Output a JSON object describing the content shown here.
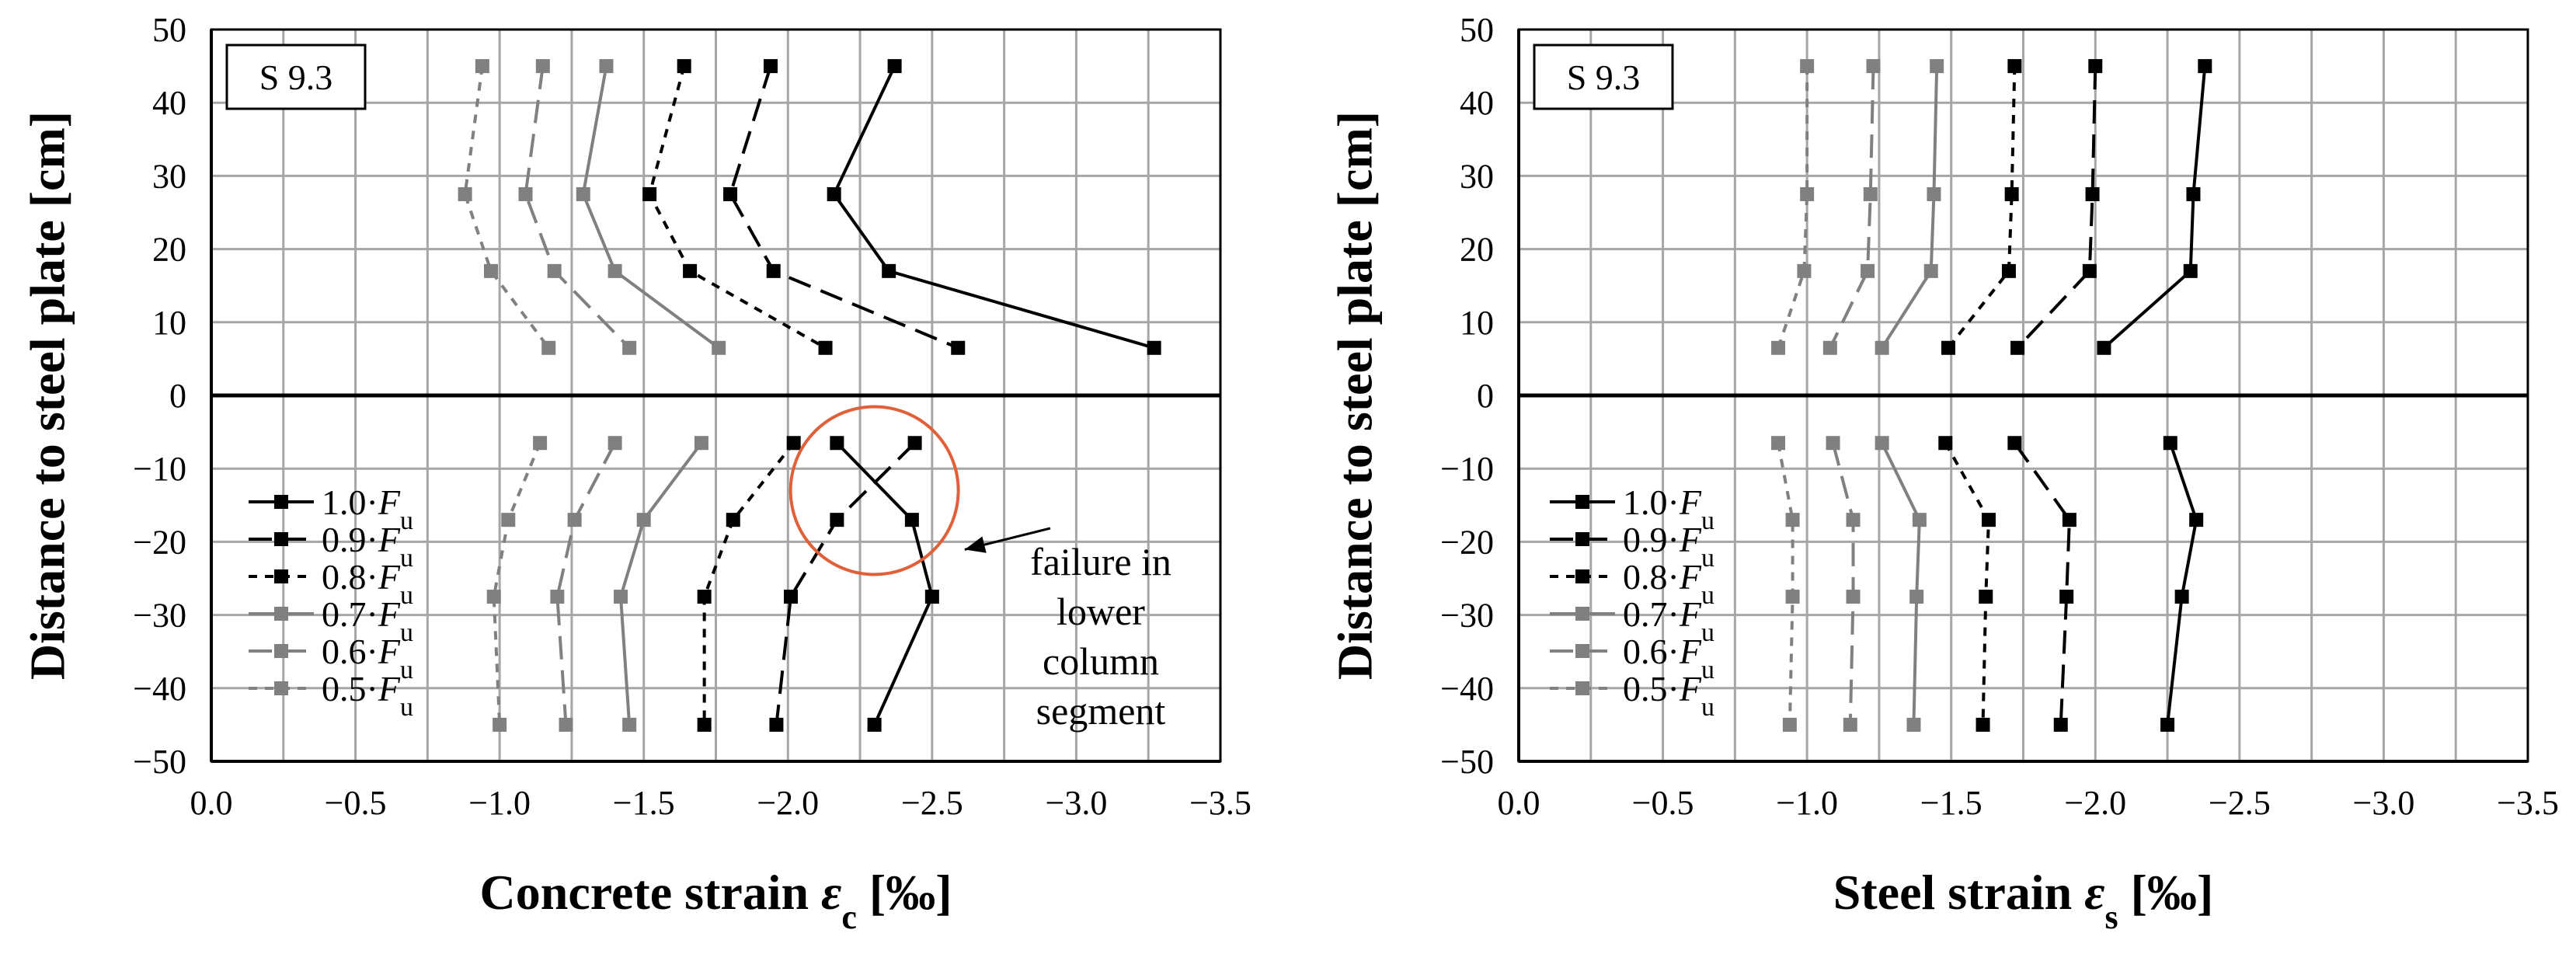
{
  "chart_data": [
    {
      "type": "line",
      "panel_label": "S 9.3",
      "xlabel_main": "Concrete strain ",
      "xlabel_symbol": "ε",
      "xlabel_sub": "c",
      "xlabel_unit": " [‰]",
      "ylabel": "Distance to steel plate [cm]",
      "xlim": [
        0.0,
        -3.5
      ],
      "ylim": [
        -50,
        50
      ],
      "x_ticks": [
        "0.0",
        "−0.5",
        "−1.0",
        "−1.5",
        "−2.0",
        "−2.5",
        "−3.0",
        "−3.5"
      ],
      "y_ticks": [
        "50",
        "40",
        "30",
        "20",
        "10",
        "0",
        "−10",
        "−20",
        "−30",
        "−40",
        "−50"
      ],
      "grid": true,
      "legend_position": "lower-left",
      "annotation": {
        "lines": [
          "failure in",
          "lower",
          "column",
          "segment"
        ],
        "circle_center": [
          -2.3,
          -13
        ],
        "arrow_target": [
          -2.57,
          -20
        ]
      },
      "series": [
        {
          "name_prefix": "1.0·",
          "name_italic": "F",
          "name_sub": "u",
          "color": "#000000",
          "dash": "solid",
          "upper": [
            [
              -2.37,
              45
            ],
            [
              -2.16,
              27.5
            ],
            [
              -2.35,
              17
            ],
            [
              -3.27,
              6.5
            ]
          ],
          "lower": [
            [
              -2.17,
              -6.5
            ],
            [
              -2.43,
              -17
            ],
            [
              -2.5,
              -27.5
            ],
            [
              -2.3,
              -45
            ]
          ]
        },
        {
          "name_prefix": "0.9·",
          "name_italic": "F",
          "name_sub": "u",
          "color": "#000000",
          "dash": "long",
          "upper": [
            [
              -1.94,
              45
            ],
            [
              -1.8,
              27.5
            ],
            [
              -1.95,
              17
            ],
            [
              -2.59,
              6.5
            ]
          ],
          "lower": [
            [
              -2.44,
              -6.5
            ],
            [
              -2.17,
              -17
            ],
            [
              -2.01,
              -27.5
            ],
            [
              -1.96,
              -45
            ]
          ]
        },
        {
          "name_prefix": "0.8·",
          "name_italic": "F",
          "name_sub": "u",
          "color": "#000000",
          "dash": "short",
          "upper": [
            [
              -1.64,
              45
            ],
            [
              -1.52,
              27.5
            ],
            [
              -1.66,
              17
            ],
            [
              -2.13,
              6.5
            ]
          ],
          "lower": [
            [
              -2.02,
              -6.5
            ],
            [
              -1.81,
              -17
            ],
            [
              -1.71,
              -27.5
            ],
            [
              -1.71,
              -45
            ]
          ]
        },
        {
          "name_prefix": "0.7·",
          "name_italic": "F",
          "name_sub": "u",
          "color": "#808080",
          "dash": "solid",
          "upper": [
            [
              -1.37,
              45
            ],
            [
              -1.29,
              27.5
            ],
            [
              -1.4,
              17
            ],
            [
              -1.76,
              6.5
            ]
          ],
          "lower": [
            [
              -1.7,
              -6.5
            ],
            [
              -1.5,
              -17
            ],
            [
              -1.42,
              -27.5
            ],
            [
              -1.45,
              -45
            ]
          ]
        },
        {
          "name_prefix": "0.6·",
          "name_italic": "F",
          "name_sub": "u",
          "color": "#808080",
          "dash": "long",
          "upper": [
            [
              -1.15,
              45
            ],
            [
              -1.09,
              27.5
            ],
            [
              -1.19,
              17
            ],
            [
              -1.45,
              6.5
            ]
          ],
          "lower": [
            [
              -1.4,
              -6.5
            ],
            [
              -1.26,
              -17
            ],
            [
              -1.2,
              -27.5
            ],
            [
              -1.23,
              -45
            ]
          ]
        },
        {
          "name_prefix": "0.5·",
          "name_italic": "F",
          "name_sub": "u",
          "color": "#808080",
          "dash": "short",
          "upper": [
            [
              -0.94,
              45
            ],
            [
              -0.88,
              27.5
            ],
            [
              -0.97,
              17
            ],
            [
              -1.17,
              6.5
            ]
          ],
          "lower": [
            [
              -1.14,
              -6.5
            ],
            [
              -1.03,
              -17
            ],
            [
              -0.98,
              -27.5
            ],
            [
              -1.0,
              -45
            ]
          ]
        }
      ]
    },
    {
      "type": "line",
      "panel_label": "S 9.3",
      "xlabel_main": "Steel strain ",
      "xlabel_symbol": "ε",
      "xlabel_sub": "s",
      "xlabel_unit": " [‰]",
      "ylabel": "Distance to steel plate [cm]",
      "xlim": [
        0.0,
        -3.5
      ],
      "ylim": [
        -50,
        50
      ],
      "x_ticks": [
        "0.0",
        "−0.5",
        "−1.0",
        "−1.5",
        "−2.0",
        "−2.5",
        "−3.0",
        "−3.5"
      ],
      "y_ticks": [
        "50",
        "40",
        "30",
        "20",
        "10",
        "0",
        "−10",
        "−20",
        "−30",
        "−40",
        "−50"
      ],
      "grid": true,
      "legend_position": "lower-left",
      "series": [
        {
          "name_prefix": "1.0·",
          "name_italic": "F",
          "name_sub": "u",
          "color": "#000000",
          "dash": "solid",
          "upper": [
            [
              -2.38,
              45
            ],
            [
              -2.34,
              27.5
            ],
            [
              -2.33,
              17
            ],
            [
              -2.03,
              6.5
            ]
          ],
          "lower": [
            [
              -2.26,
              -6.5
            ],
            [
              -2.35,
              -17
            ],
            [
              -2.3,
              -27.5
            ],
            [
              -2.25,
              -45
            ]
          ]
        },
        {
          "name_prefix": "0.9·",
          "name_italic": "F",
          "name_sub": "u",
          "color": "#000000",
          "dash": "long",
          "upper": [
            [
              -2.0,
              45
            ],
            [
              -1.99,
              27.5
            ],
            [
              -1.98,
              17
            ],
            [
              -1.73,
              6.5
            ]
          ],
          "lower": [
            [
              -1.72,
              -6.5
            ],
            [
              -1.91,
              -17
            ],
            [
              -1.9,
              -27.5
            ],
            [
              -1.88,
              -45
            ]
          ]
        },
        {
          "name_prefix": "0.8·",
          "name_italic": "F",
          "name_sub": "u",
          "color": "#000000",
          "dash": "short",
          "upper": [
            [
              -1.72,
              45
            ],
            [
              -1.71,
              27.5
            ],
            [
              -1.7,
              17
            ],
            [
              -1.49,
              6.5
            ]
          ],
          "lower": [
            [
              -1.48,
              -6.5
            ],
            [
              -1.63,
              -17
            ],
            [
              -1.62,
              -27.5
            ],
            [
              -1.61,
              -45
            ]
          ]
        },
        {
          "name_prefix": "0.7·",
          "name_italic": "F",
          "name_sub": "u",
          "color": "#808080",
          "dash": "solid",
          "upper": [
            [
              -1.45,
              45
            ],
            [
              -1.44,
              27.5
            ],
            [
              -1.43,
              17
            ],
            [
              -1.26,
              6.5
            ]
          ],
          "lower": [
            [
              -1.26,
              -6.5
            ],
            [
              -1.39,
              -17
            ],
            [
              -1.38,
              -27.5
            ],
            [
              -1.37,
              -45
            ]
          ]
        },
        {
          "name_prefix": "0.6·",
          "name_italic": "F",
          "name_sub": "u",
          "color": "#808080",
          "dash": "long",
          "upper": [
            [
              -1.23,
              45
            ],
            [
              -1.22,
              27.5
            ],
            [
              -1.21,
              17
            ],
            [
              -1.08,
              6.5
            ]
          ],
          "lower": [
            [
              -1.09,
              -6.5
            ],
            [
              -1.16,
              -17
            ],
            [
              -1.16,
              -27.5
            ],
            [
              -1.15,
              -45
            ]
          ]
        },
        {
          "name_prefix": "0.5·",
          "name_italic": "F",
          "name_sub": "u",
          "color": "#808080",
          "dash": "short",
          "upper": [
            [
              -1.0,
              45
            ],
            [
              -1.0,
              27.5
            ],
            [
              -0.99,
              17
            ],
            [
              -0.9,
              6.5
            ]
          ],
          "lower": [
            [
              -0.9,
              -6.5
            ],
            [
              -0.95,
              -17
            ],
            [
              -0.95,
              -27.5
            ],
            [
              -0.94,
              -45
            ]
          ]
        }
      ]
    }
  ]
}
